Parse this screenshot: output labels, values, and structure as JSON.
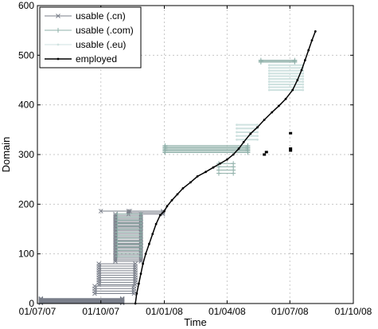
{
  "chart_data": {
    "type": "line",
    "title": "",
    "xlabel": "Time",
    "ylabel": "Domain",
    "xlim": [
      "2007-07-01",
      "2008-10-01"
    ],
    "ylim": [
      0,
      600
    ],
    "x_ticks": [
      "2007-07-01",
      "2007-10-01",
      "2008-01-01",
      "2008-04-01",
      "2008-07-01",
      "2008-10-01"
    ],
    "x_tick_labels": [
      "01/07/07",
      "01/10/07",
      "01/01/08",
      "01/04/08",
      "01/07/08",
      "01/10/08"
    ],
    "y_ticks": [
      0,
      100,
      200,
      300,
      400,
      500,
      600
    ],
    "grid": true,
    "legend_position": "top-left",
    "legend": [
      {
        "label": "usable (.cn)",
        "color": "#7a7f8a",
        "marker": "x"
      },
      {
        "label": "usable (.com)",
        "color": "#8fb0a9",
        "marker": "+"
      },
      {
        "label": "usable (.eu)",
        "color": "#cfe2e0",
        "marker": "."
      },
      {
        "label": "employed",
        "color": "#000000",
        "marker": "."
      }
    ],
    "series": [
      {
        "name": "usable (.cn)",
        "segments": [
          {
            "start": "2007-07-06",
            "end": "2007-11-01",
            "y_start": 1,
            "y_end": 10,
            "count": 10
          },
          {
            "start": "2007-09-22",
            "end": "2007-11-18",
            "y_start": 20,
            "y_end": 35,
            "count": 4
          },
          {
            "start": "2007-09-28",
            "end": "2007-11-20",
            "y_start": 38,
            "y_end": 80,
            "count": 10
          },
          {
            "start": "2007-10-22",
            "end": "2007-11-28",
            "y_start": 85,
            "y_end": 180,
            "count": 30
          },
          {
            "start": "2007-10-01",
            "end": "2007-11-12",
            "y_start": 186,
            "y_end": 186,
            "count": 1
          },
          {
            "start": "2007-11-10",
            "end": "2007-12-30",
            "y_start": 180,
            "y_end": 186,
            "count": 3
          }
        ]
      },
      {
        "name": "usable (.com)",
        "segments": [
          {
            "start": "2007-10-25",
            "end": "2007-11-28",
            "y_start": 95,
            "y_end": 180,
            "count": 15
          },
          {
            "start": "2008-01-02",
            "end": "2008-05-01",
            "y_start": 304,
            "y_end": 318,
            "count": 7
          },
          {
            "start": "2008-05-20",
            "end": "2008-07-08",
            "y_start": 486,
            "y_end": 490,
            "count": 3
          },
          {
            "start": "2008-03-20",
            "end": "2008-04-10",
            "y_start": 262,
            "y_end": 282,
            "count": 4
          }
        ]
      },
      {
        "name": "usable (.eu)",
        "segments": [
          {
            "start": "2008-06-01",
            "end": "2008-07-20",
            "y_start": 430,
            "y_end": 480,
            "count": 10
          },
          {
            "start": "2008-04-15",
            "end": "2008-05-15",
            "y_start": 330,
            "y_end": 360,
            "count": 5
          }
        ]
      },
      {
        "name": "employed",
        "points": [
          [
            "2007-11-20",
            0
          ],
          [
            "2007-11-22",
            20
          ],
          [
            "2007-11-25",
            40
          ],
          [
            "2007-11-28",
            60
          ],
          [
            "2007-12-01",
            80
          ],
          [
            "2007-12-05",
            100
          ],
          [
            "2007-12-10",
            120
          ],
          [
            "2007-12-15",
            140
          ],
          [
            "2007-12-20",
            160
          ],
          [
            "2007-12-26",
            178
          ],
          [
            "2008-01-01",
            186
          ],
          [
            "2008-01-05",
            196
          ],
          [
            "2008-01-12",
            208
          ],
          [
            "2008-01-20",
            220
          ],
          [
            "2008-01-28",
            232
          ],
          [
            "2008-02-08",
            244
          ],
          [
            "2008-02-18",
            256
          ],
          [
            "2008-03-01",
            265
          ],
          [
            "2008-03-12",
            274
          ],
          [
            "2008-03-22",
            282
          ],
          [
            "2008-04-01",
            290
          ],
          [
            "2008-04-10",
            300
          ],
          [
            "2008-04-18",
            312
          ],
          [
            "2008-04-25",
            325
          ],
          [
            "2008-05-05",
            342
          ],
          [
            "2008-05-15",
            355
          ],
          [
            "2008-05-25",
            370
          ],
          [
            "2008-06-05",
            385
          ],
          [
            "2008-06-15",
            398
          ],
          [
            "2008-06-25",
            412
          ],
          [
            "2008-07-05",
            430
          ],
          [
            "2008-07-12",
            450
          ],
          [
            "2008-07-18",
            470
          ],
          [
            "2008-07-23",
            490
          ],
          [
            "2008-07-28",
            510
          ],
          [
            "2008-08-02",
            530
          ],
          [
            "2008-08-07",
            548
          ]
        ],
        "isolated_points": [
          [
            "2008-05-25",
            300
          ],
          [
            "2008-05-28",
            305
          ],
          [
            "2008-07-02",
            343
          ],
          [
            "2008-07-02",
            312
          ],
          [
            "2008-07-02",
            308
          ]
        ]
      }
    ]
  }
}
